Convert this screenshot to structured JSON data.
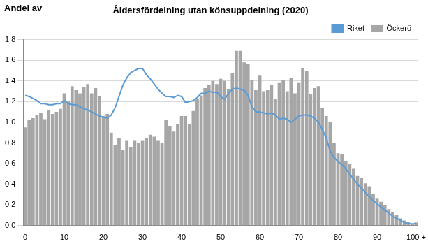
{
  "chart_data": {
    "type": "bar",
    "title": "Åldersfördelning utan könsuppdelning (2020)",
    "ylabel": "Andel av",
    "categories": [
      "0",
      null,
      null,
      null,
      null,
      null,
      null,
      null,
      null,
      null,
      "10",
      null,
      null,
      null,
      null,
      null,
      null,
      null,
      null,
      null,
      "20",
      null,
      null,
      null,
      null,
      null,
      null,
      null,
      null,
      null,
      "30",
      null,
      null,
      null,
      null,
      null,
      null,
      null,
      null,
      null,
      "40",
      null,
      null,
      null,
      null,
      null,
      null,
      null,
      null,
      null,
      "50",
      null,
      null,
      null,
      null,
      null,
      null,
      null,
      null,
      null,
      "60",
      null,
      null,
      null,
      null,
      null,
      null,
      null,
      null,
      null,
      "70",
      null,
      null,
      null,
      null,
      null,
      null,
      null,
      null,
      null,
      "80",
      null,
      null,
      null,
      null,
      null,
      null,
      null,
      null,
      null,
      "90",
      null,
      null,
      null,
      null,
      null,
      null,
      null,
      null,
      null,
      "100 +"
    ],
    "series": [
      {
        "name": "Öckerö",
        "type": "bar",
        "color": "#a6a6a6",
        "values": [
          0.95,
          1.02,
          1.04,
          1.07,
          1.09,
          1.03,
          1.12,
          1.08,
          1.1,
          1.13,
          1.28,
          1.2,
          1.35,
          1.31,
          1.28,
          1.34,
          1.37,
          1.28,
          1.33,
          1.25,
          1.06,
          1.08,
          0.9,
          0.78,
          0.85,
          0.73,
          0.82,
          0.76,
          0.82,
          0.8,
          0.82,
          0.85,
          0.88,
          0.86,
          0.82,
          0.8,
          1.02,
          0.96,
          0.91,
          0.98,
          1.06,
          1.06,
          0.98,
          1.11,
          1.23,
          1.26,
          1.33,
          1.36,
          1.4,
          1.37,
          1.42,
          1.4,
          1.32,
          1.48,
          1.69,
          1.69,
          1.58,
          1.56,
          1.41,
          1.31,
          1.45,
          1.3,
          1.31,
          1.36,
          1.23,
          1.38,
          1.41,
          1.3,
          1.43,
          1.28,
          1.38,
          1.52,
          1.5,
          1.27,
          1.33,
          1.35,
          1.14,
          1.06,
          1.0,
          0.8,
          0.7,
          0.69,
          0.62,
          0.6,
          0.55,
          0.48,
          0.46,
          0.41,
          0.38,
          0.31,
          0.26,
          0.23,
          0.2,
          0.16,
          0.13,
          0.1,
          0.07,
          0.05,
          0.04,
          0.02,
          0.03
        ]
      },
      {
        "name": "Riket",
        "type": "line",
        "color": "#5b9bd5",
        "values": [
          1.26,
          1.25,
          1.23,
          1.21,
          1.18,
          1.18,
          1.17,
          1.17,
          1.18,
          1.18,
          1.21,
          1.18,
          1.17,
          1.17,
          1.15,
          1.13,
          1.12,
          1.1,
          1.08,
          1.06,
          1.05,
          1.04,
          1.07,
          1.14,
          1.25,
          1.36,
          1.43,
          1.48,
          1.5,
          1.52,
          1.52,
          1.46,
          1.42,
          1.37,
          1.32,
          1.28,
          1.25,
          1.25,
          1.24,
          1.26,
          1.25,
          1.19,
          1.2,
          1.21,
          1.24,
          1.28,
          1.28,
          1.3,
          1.29,
          1.29,
          1.25,
          1.22,
          1.28,
          1.32,
          1.33,
          1.32,
          1.31,
          1.26,
          1.15,
          1.1,
          1.1,
          1.09,
          1.08,
          1.09,
          1.07,
          1.03,
          1.04,
          1.03,
          1.0,
          1.03,
          1.06,
          1.07,
          1.07,
          1.06,
          1.04,
          1.0,
          0.93,
          0.85,
          0.72,
          0.66,
          0.62,
          0.59,
          0.55,
          0.5,
          0.45,
          0.4,
          0.36,
          0.32,
          0.28,
          0.24,
          0.21,
          0.18,
          0.15,
          0.12,
          0.09,
          0.07,
          0.05,
          0.03,
          0.02,
          0.015,
          0.02
        ]
      }
    ],
    "ylim": [
      0,
      1.8
    ],
    "yticks": [
      {
        "value": 0,
        "label": "0,0"
      },
      {
        "value": 0.2,
        "label": "0,2"
      },
      {
        "value": 0.4,
        "label": "0,4"
      },
      {
        "value": 0.6,
        "label": "0,6"
      },
      {
        "value": 0.8,
        "label": "0,8"
      },
      {
        "value": 1,
        "label": "1,0"
      },
      {
        "value": 1.2,
        "label": "1,2"
      },
      {
        "value": 1.4,
        "label": "1,4"
      },
      {
        "value": 1.6,
        "label": "1,6"
      },
      {
        "value": 1.8,
        "label": "1,8"
      }
    ],
    "grid": true,
    "legend": "upper right"
  }
}
